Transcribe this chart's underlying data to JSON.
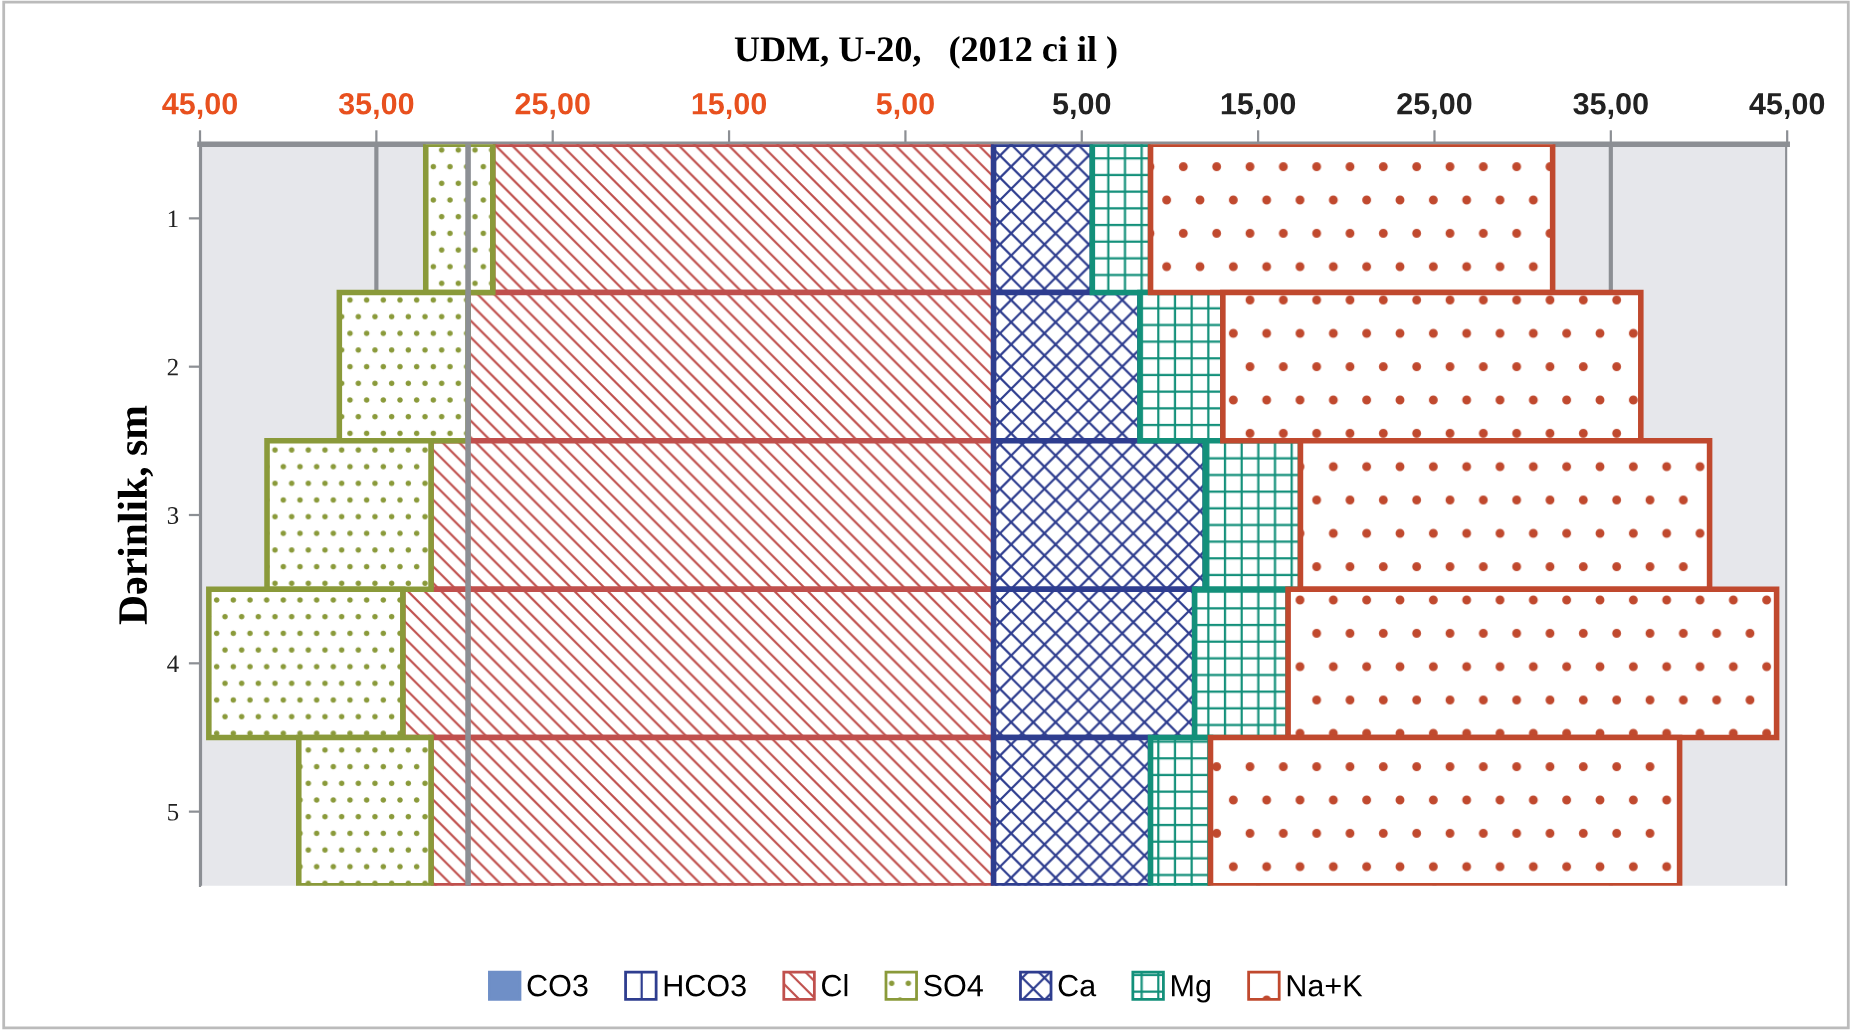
{
  "chart_data": {
    "type": "bar",
    "orientation": "horizontal",
    "stacked": true,
    "title": "UDM, U-20,   (2012 ci il )",
    "ylabel": "Dərinlik, sm",
    "categories": [
      "1",
      "2",
      "3",
      "4",
      "5"
    ],
    "series": [
      {
        "name": "CO3",
        "color": "#6f8fc7",
        "values": [
          0,
          0,
          0,
          0,
          0
        ]
      },
      {
        "name": "HCO3",
        "color": "#2e3d8f",
        "values": [
          null,
          null,
          null,
          null,
          null
        ]
      },
      {
        "name": "Cl",
        "color": "#c0504d",
        "values": [
          -28.4,
          -29.8,
          -31.9,
          -33.5,
          -31.9
        ]
      },
      {
        "name": "SO4",
        "color": "#8a9a3a",
        "values": [
          -3.8,
          -7.3,
          -9.3,
          -11.0,
          -7.5
        ]
      },
      {
        "name": "Ca",
        "color": "#2e3d8f",
        "values": [
          5.6,
          8.3,
          12.0,
          11.4,
          8.9
        ]
      },
      {
        "name": "Mg",
        "color": "#13907a",
        "values": [
          3.3,
          4.7,
          5.4,
          5.3,
          3.4
        ]
      },
      {
        "name": "Na+K",
        "color": "#c0492e",
        "values": [
          22.8,
          23.7,
          23.2,
          27.7,
          26.6
        ]
      }
    ],
    "xlim": [
      -45,
      45
    ],
    "xticks": [
      {
        "value": -45,
        "label": "45,00"
      },
      {
        "value": -35,
        "label": "35,00"
      },
      {
        "value": -25,
        "label": "25,00"
      },
      {
        "value": -15,
        "label": "15,00"
      },
      {
        "value": -5,
        "label": "5,00"
      },
      {
        "value": 5,
        "label": "5,00"
      },
      {
        "value": 15,
        "label": "15,00"
      },
      {
        "value": 25,
        "label": "25,00"
      },
      {
        "value": 35,
        "label": "35,00"
      },
      {
        "value": 45,
        "label": "45,00"
      }
    ],
    "ref_lines": [
      {
        "axis": "x",
        "value": -29.8,
        "color": "#8c8f94"
      }
    ],
    "grid": "x",
    "legend": "bottom"
  }
}
